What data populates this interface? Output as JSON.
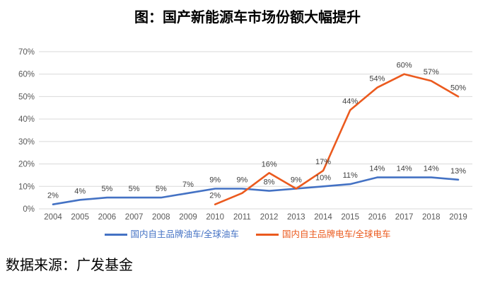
{
  "title": "图：国产新能源车市场份额大幅提升",
  "source": "数据来源：广发基金",
  "colors": {
    "oil_series": "#4472C4",
    "ev_series": "#EB5A1E",
    "grid": "#D9D9D9",
    "axis_text": "#595959",
    "data_label_text": "#404040"
  },
  "legend": {
    "items": [
      {
        "label": "国内自主品牌油车/全球油车",
        "color": "#4472C4"
      },
      {
        "label": "国内自主品牌电车/全球电车",
        "color": "#EB5A1E"
      }
    ]
  },
  "chart_data": {
    "type": "line",
    "title": "图：国产新能源车市场份额大幅提升",
    "x": [
      2004,
      2005,
      2006,
      2007,
      2008,
      2009,
      2010,
      2011,
      2012,
      2013,
      2014,
      2015,
      2016,
      2017,
      2018,
      2019
    ],
    "series": [
      {
        "name": "国内自主品牌油车/全球油车",
        "color": "#4472C4",
        "values": [
          2,
          4,
          5,
          5,
          5,
          7,
          9,
          9,
          8,
          9,
          10,
          11,
          14,
          14,
          14,
          13
        ],
        "labels": [
          "2%",
          "4%",
          "5%",
          "5%",
          "5%",
          "7%",
          "9%",
          "9%",
          "8%",
          "9%",
          "10%",
          "11%",
          "14%",
          "14%",
          "14%",
          "13%"
        ]
      },
      {
        "name": "国内自主品牌电车/全球电车",
        "color": "#EB5A1E",
        "values": [
          null,
          null,
          null,
          null,
          null,
          null,
          2,
          7,
          16,
          9,
          17,
          44,
          54,
          60,
          57,
          50
        ],
        "labels": [
          null,
          null,
          null,
          null,
          null,
          null,
          "2%",
          null,
          "16%",
          null,
          "17%",
          "44%",
          "54%",
          "60%",
          "57%",
          "50%"
        ]
      }
    ],
    "ylabel": "",
    "xlabel": "",
    "ylim": [
      0,
      70
    ],
    "ytick_step": 10,
    "ytick_format": "percent",
    "grid": true,
    "legend_position": "bottom"
  }
}
